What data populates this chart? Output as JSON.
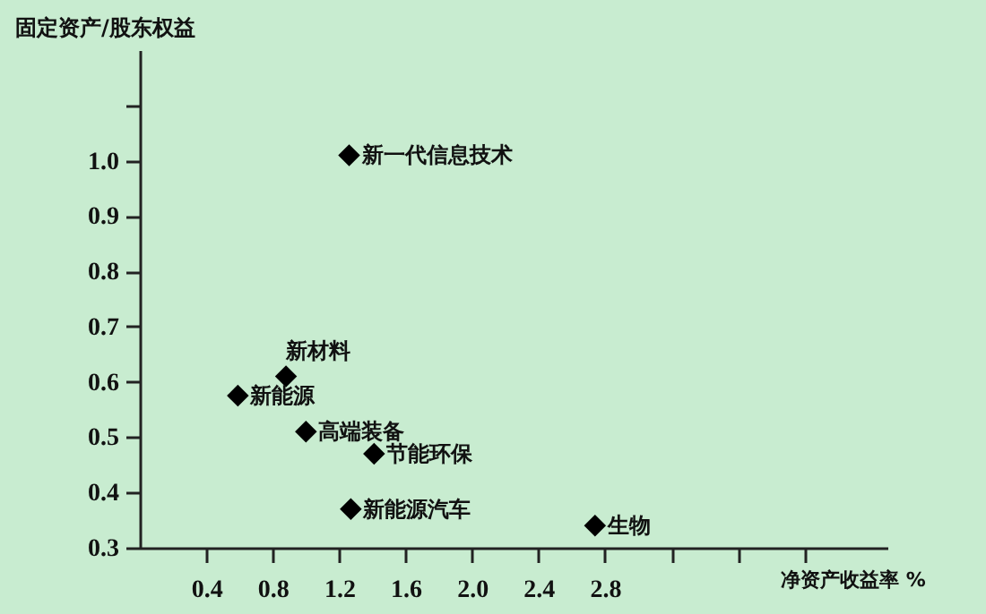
{
  "chart_data": {
    "type": "scatter",
    "xlabel": "净资产收益率 %",
    "ylabel": "固定资产/股东权益",
    "x": [
      1.26,
      0.88,
      0.59,
      1.0,
      1.41,
      1.27,
      2.74
    ],
    "values": [
      1.01,
      0.61,
      0.575,
      0.51,
      0.47,
      0.37,
      0.34
    ],
    "color": "#000000",
    "marker": "diamond",
    "grid": false,
    "xlim": [
      0,
      4.5
    ],
    "xticks": [
      0.4,
      0.8,
      1.2,
      1.6,
      {
        "value": 2.0,
        "label": "2.0"
      },
      2.4,
      2.8,
      {
        "value": 3.2,
        "label": null
      },
      {
        "value": 3.6,
        "label": null
      },
      {
        "value": 4.0,
        "label": null
      }
    ],
    "ylim": [
      0.3,
      1.2
    ],
    "yticks": [
      0.3,
      0.4,
      0.5,
      0.6,
      0.7,
      0.8,
      0.9,
      {
        "value": 1.0,
        "label": "1.0"
      },
      {
        "value": 1.1,
        "label": null
      }
    ],
    "annotations": [
      {
        "text": "新一代信息技术",
        "x": 1.26,
        "y": 1.01
      },
      {
        "text": "新材料",
        "x": 0.88,
        "y": 0.61
      },
      {
        "text": "新能源",
        "x": 0.59,
        "y": 0.575
      },
      {
        "text": "高端装备",
        "x": 1.0,
        "y": 0.51
      },
      {
        "text": "节能环保",
        "x": 1.41,
        "y": 0.47
      },
      {
        "text": "新能源汽车",
        "x": 1.27,
        "y": 0.37
      },
      {
        "text": "生物",
        "x": 2.74,
        "y": 0.34
      }
    ]
  }
}
